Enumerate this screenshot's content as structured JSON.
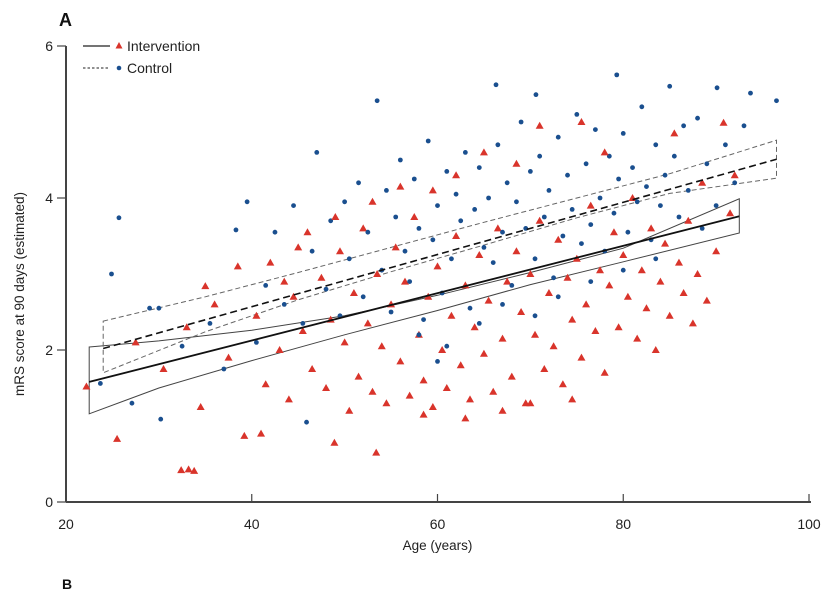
{
  "panel_label": "A",
  "next_panel_label": "B",
  "chart_data": {
    "type": "scatter",
    "title": "",
    "xlabel": "Age (years)",
    "ylabel": "mRS score at 90 days (estimated)",
    "xlim": [
      20,
      100
    ],
    "ylim": [
      0,
      6
    ],
    "xticks": [
      20,
      40,
      60,
      80,
      100
    ],
    "yticks": [
      0,
      2,
      4,
      6
    ],
    "grid": false,
    "legend_position": "top-left",
    "colors": {
      "intervention": "#d9342b",
      "control": "#1a4f8f",
      "fit_line": "#111111",
      "ci_band": "#555555"
    },
    "series": [
      {
        "name": "Intervention",
        "marker": "triangle",
        "line_style": "solid",
        "fit": {
          "x": [
            22.5,
            92.5
          ],
          "y": [
            1.58,
            3.76
          ]
        },
        "ci_upper": {
          "x": [
            22.5,
            30,
            40,
            50,
            60,
            70,
            80,
            92.5
          ],
          "y": [
            2.04,
            2.12,
            2.26,
            2.45,
            2.72,
            3.02,
            3.34,
            3.99
          ]
        },
        "ci_lower": {
          "x": [
            22.5,
            30,
            40,
            50,
            60,
            70,
            80,
            92.5
          ],
          "y": [
            1.16,
            1.5,
            1.86,
            2.2,
            2.52,
            2.86,
            3.16,
            3.54
          ]
        },
        "points": [
          [
            22.2,
            1.52
          ],
          [
            25.5,
            0.83
          ],
          [
            32.4,
            0.42
          ],
          [
            33.2,
            0.43
          ],
          [
            33.8,
            0.41
          ],
          [
            35.0,
            2.84
          ],
          [
            39.2,
            0.87
          ],
          [
            41.0,
            0.9
          ],
          [
            48.9,
            0.78
          ],
          [
            53.4,
            0.65
          ],
          [
            27.5,
            2.1
          ],
          [
            30.5,
            1.75
          ],
          [
            33.0,
            2.3
          ],
          [
            34.5,
            1.25
          ],
          [
            36.0,
            2.6
          ],
          [
            37.5,
            1.9
          ],
          [
            38.5,
            3.1
          ],
          [
            40.5,
            2.45
          ],
          [
            41.5,
            1.55
          ],
          [
            42.0,
            3.15
          ],
          [
            43.0,
            2.0
          ],
          [
            44.0,
            1.35
          ],
          [
            44.5,
            2.7
          ],
          [
            45.5,
            2.25
          ],
          [
            46.0,
            3.55
          ],
          [
            46.5,
            1.75
          ],
          [
            47.5,
            2.95
          ],
          [
            48.0,
            1.5
          ],
          [
            48.5,
            2.4
          ],
          [
            49.5,
            3.3
          ],
          [
            50.0,
            2.1
          ],
          [
            50.5,
            1.2
          ],
          [
            51.0,
            2.75
          ],
          [
            51.5,
            1.65
          ],
          [
            52.0,
            3.6
          ],
          [
            52.5,
            2.35
          ],
          [
            53.0,
            1.45
          ],
          [
            53.5,
            3.0
          ],
          [
            54.0,
            2.05
          ],
          [
            54.5,
            1.3
          ],
          [
            55.0,
            2.6
          ],
          [
            55.5,
            3.35
          ],
          [
            56.0,
            1.85
          ],
          [
            56.5,
            2.9
          ],
          [
            57.0,
            1.4
          ],
          [
            57.5,
            3.75
          ],
          [
            58.0,
            2.2
          ],
          [
            58.5,
            1.6
          ],
          [
            59.0,
            2.7
          ],
          [
            59.5,
            1.25
          ],
          [
            60.0,
            3.1
          ],
          [
            60.5,
            2.0
          ],
          [
            61.0,
            1.5
          ],
          [
            61.5,
            2.45
          ],
          [
            62.0,
            3.5
          ],
          [
            62.5,
            1.8
          ],
          [
            63.0,
            2.85
          ],
          [
            63.5,
            1.35
          ],
          [
            64.0,
            2.3
          ],
          [
            64.5,
            3.25
          ],
          [
            65.0,
            1.95
          ],
          [
            65.5,
            2.65
          ],
          [
            66.0,
            1.45
          ],
          [
            66.5,
            3.6
          ],
          [
            67.0,
            2.15
          ],
          [
            67.5,
            2.9
          ],
          [
            68.0,
            1.65
          ],
          [
            68.5,
            3.3
          ],
          [
            69.0,
            2.5
          ],
          [
            69.5,
            1.3
          ],
          [
            70.0,
            3.0
          ],
          [
            70.5,
            2.2
          ],
          [
            71.0,
            3.7
          ],
          [
            71.5,
            1.75
          ],
          [
            72.0,
            2.75
          ],
          [
            72.5,
            2.05
          ],
          [
            73.0,
            3.45
          ],
          [
            73.5,
            1.55
          ],
          [
            74.0,
            2.95
          ],
          [
            74.5,
            2.4
          ],
          [
            75.0,
            3.2
          ],
          [
            75.5,
            1.9
          ],
          [
            76.0,
            2.6
          ],
          [
            76.5,
            3.9
          ],
          [
            77.0,
            2.25
          ],
          [
            77.5,
            3.05
          ],
          [
            78.0,
            1.7
          ],
          [
            78.5,
            2.85
          ],
          [
            79.0,
            3.55
          ],
          [
            79.5,
            2.3
          ],
          [
            80.0,
            3.25
          ],
          [
            80.5,
            2.7
          ],
          [
            81.0,
            4.0
          ],
          [
            81.5,
            2.15
          ],
          [
            82.0,
            3.05
          ],
          [
            82.5,
            2.55
          ],
          [
            83.0,
            3.6
          ],
          [
            83.5,
            2.0
          ],
          [
            84.0,
            2.9
          ],
          [
            84.5,
            3.4
          ],
          [
            85.0,
            2.45
          ],
          [
            85.5,
            4.85
          ],
          [
            86.0,
            3.15
          ],
          [
            86.5,
            2.75
          ],
          [
            87.0,
            3.7
          ],
          [
            87.5,
            2.35
          ],
          [
            88.0,
            3.0
          ],
          [
            88.5,
            4.2
          ],
          [
            89.0,
            2.65
          ],
          [
            90.0,
            3.3
          ],
          [
            90.8,
            4.99
          ],
          [
            91.5,
            3.8
          ],
          [
            92.0,
            4.3
          ],
          [
            62.0,
            4.3
          ],
          [
            65.0,
            4.6
          ],
          [
            68.5,
            4.45
          ],
          [
            71.0,
            4.95
          ],
          [
            75.5,
            5.0
          ],
          [
            78.0,
            4.6
          ],
          [
            59.5,
            4.1
          ],
          [
            56.0,
            4.15
          ],
          [
            53.0,
            3.95
          ],
          [
            49.0,
            3.75
          ],
          [
            45.0,
            3.35
          ],
          [
            43.5,
            2.9
          ],
          [
            63.0,
            1.1
          ],
          [
            67.0,
            1.2
          ],
          [
            70.0,
            1.3
          ],
          [
            74.5,
            1.35
          ],
          [
            58.5,
            1.15
          ]
        ]
      },
      {
        "name": "Control",
        "marker": "circle",
        "line_style": "dashed",
        "fit": {
          "x": [
            24,
            96.5
          ],
          "y": [
            2.02,
            4.51
          ]
        },
        "ci_upper": {
          "x": [
            24,
            35,
            45,
            55,
            65,
            75,
            85,
            96.5
          ],
          "y": [
            2.38,
            2.7,
            3.02,
            3.35,
            3.68,
            4.0,
            4.32,
            4.76
          ]
        },
        "ci_lower": {
          "x": [
            24,
            35,
            45,
            55,
            65,
            75,
            85,
            96.5
          ],
          "y": [
            1.7,
            2.24,
            2.66,
            3.03,
            3.38,
            3.74,
            4.06,
            4.26
          ]
        },
        "points": [
          [
            23.7,
            1.56
          ],
          [
            24.9,
            3.0
          ],
          [
            25.7,
            3.74
          ],
          [
            27.1,
            1.3
          ],
          [
            30.2,
            1.09
          ],
          [
            38.3,
            3.58
          ],
          [
            45.9,
            1.05
          ],
          [
            66.3,
            5.49
          ],
          [
            70.6,
            5.36
          ],
          [
            79.3,
            5.62
          ],
          [
            85.0,
            5.47
          ],
          [
            90.1,
            5.45
          ],
          [
            93.7,
            5.38
          ],
          [
            96.5,
            5.28
          ],
          [
            29.0,
            2.55
          ],
          [
            30.0,
            2.55
          ],
          [
            32.5,
            2.05
          ],
          [
            35.5,
            2.35
          ],
          [
            37.0,
            1.75
          ],
          [
            39.5,
            3.95
          ],
          [
            40.5,
            2.1
          ],
          [
            41.5,
            2.85
          ],
          [
            42.5,
            3.55
          ],
          [
            43.5,
            2.6
          ],
          [
            44.5,
            3.9
          ],
          [
            45.5,
            2.35
          ],
          [
            46.5,
            3.3
          ],
          [
            47.0,
            4.6
          ],
          [
            48.0,
            2.8
          ],
          [
            48.5,
            3.7
          ],
          [
            49.5,
            2.45
          ],
          [
            50.0,
            3.95
          ],
          [
            50.5,
            3.2
          ],
          [
            51.5,
            4.2
          ],
          [
            52.0,
            2.7
          ],
          [
            52.5,
            3.55
          ],
          [
            53.5,
            5.28
          ],
          [
            54.0,
            3.05
          ],
          [
            54.5,
            4.1
          ],
          [
            55.0,
            2.5
          ],
          [
            55.5,
            3.75
          ],
          [
            56.0,
            4.5
          ],
          [
            56.5,
            3.3
          ],
          [
            57.0,
            2.9
          ],
          [
            57.5,
            4.25
          ],
          [
            58.0,
            3.6
          ],
          [
            58.5,
            2.4
          ],
          [
            59.0,
            4.75
          ],
          [
            59.5,
            3.45
          ],
          [
            60.0,
            3.9
          ],
          [
            60.5,
            2.75
          ],
          [
            61.0,
            4.35
          ],
          [
            61.5,
            3.2
          ],
          [
            62.0,
            4.05
          ],
          [
            62.5,
            3.7
          ],
          [
            63.0,
            4.6
          ],
          [
            63.5,
            2.55
          ],
          [
            64.0,
            3.85
          ],
          [
            64.5,
            4.4
          ],
          [
            65.0,
            3.35
          ],
          [
            65.5,
            4.0
          ],
          [
            66.0,
            3.15
          ],
          [
            66.5,
            4.7
          ],
          [
            67.0,
            3.55
          ],
          [
            67.5,
            4.2
          ],
          [
            68.0,
            2.85
          ],
          [
            68.5,
            3.95
          ],
          [
            69.0,
            5.0
          ],
          [
            69.5,
            3.6
          ],
          [
            70.0,
            4.35
          ],
          [
            70.5,
            3.2
          ],
          [
            71.0,
            4.55
          ],
          [
            71.5,
            3.75
          ],
          [
            72.0,
            4.1
          ],
          [
            72.5,
            2.95
          ],
          [
            73.0,
            4.8
          ],
          [
            73.5,
            3.5
          ],
          [
            74.0,
            4.3
          ],
          [
            74.5,
            3.85
          ],
          [
            75.0,
            5.1
          ],
          [
            75.5,
            3.4
          ],
          [
            76.0,
            4.45
          ],
          [
            76.5,
            3.65
          ],
          [
            77.0,
            4.9
          ],
          [
            77.5,
            4.0
          ],
          [
            78.0,
            3.3
          ],
          [
            78.5,
            4.55
          ],
          [
            79.0,
            3.8
          ],
          [
            79.5,
            4.25
          ],
          [
            80.0,
            4.85
          ],
          [
            80.5,
            3.55
          ],
          [
            81.0,
            4.4
          ],
          [
            81.5,
            3.95
          ],
          [
            82.0,
            5.2
          ],
          [
            82.5,
            4.15
          ],
          [
            83.0,
            3.45
          ],
          [
            83.5,
            4.7
          ],
          [
            84.0,
            3.9
          ],
          [
            84.5,
            4.3
          ],
          [
            85.5,
            4.55
          ],
          [
            86.0,
            3.75
          ],
          [
            86.5,
            4.95
          ],
          [
            87.0,
            4.1
          ],
          [
            88.0,
            5.05
          ],
          [
            88.5,
            3.6
          ],
          [
            89.0,
            4.45
          ],
          [
            90.0,
            3.9
          ],
          [
            91.0,
            4.7
          ],
          [
            92.0,
            4.2
          ],
          [
            93.0,
            4.95
          ],
          [
            58.0,
            2.2
          ],
          [
            61.0,
            2.05
          ],
          [
            64.5,
            2.35
          ],
          [
            67.0,
            2.6
          ],
          [
            70.5,
            2.45
          ],
          [
            73.0,
            2.7
          ],
          [
            76.5,
            2.9
          ],
          [
            80.0,
            3.05
          ],
          [
            83.5,
            3.2
          ],
          [
            60.0,
            1.85
          ]
        ]
      }
    ]
  },
  "legend": {
    "items": [
      {
        "label": "Intervention"
      },
      {
        "label": "Control"
      }
    ]
  }
}
